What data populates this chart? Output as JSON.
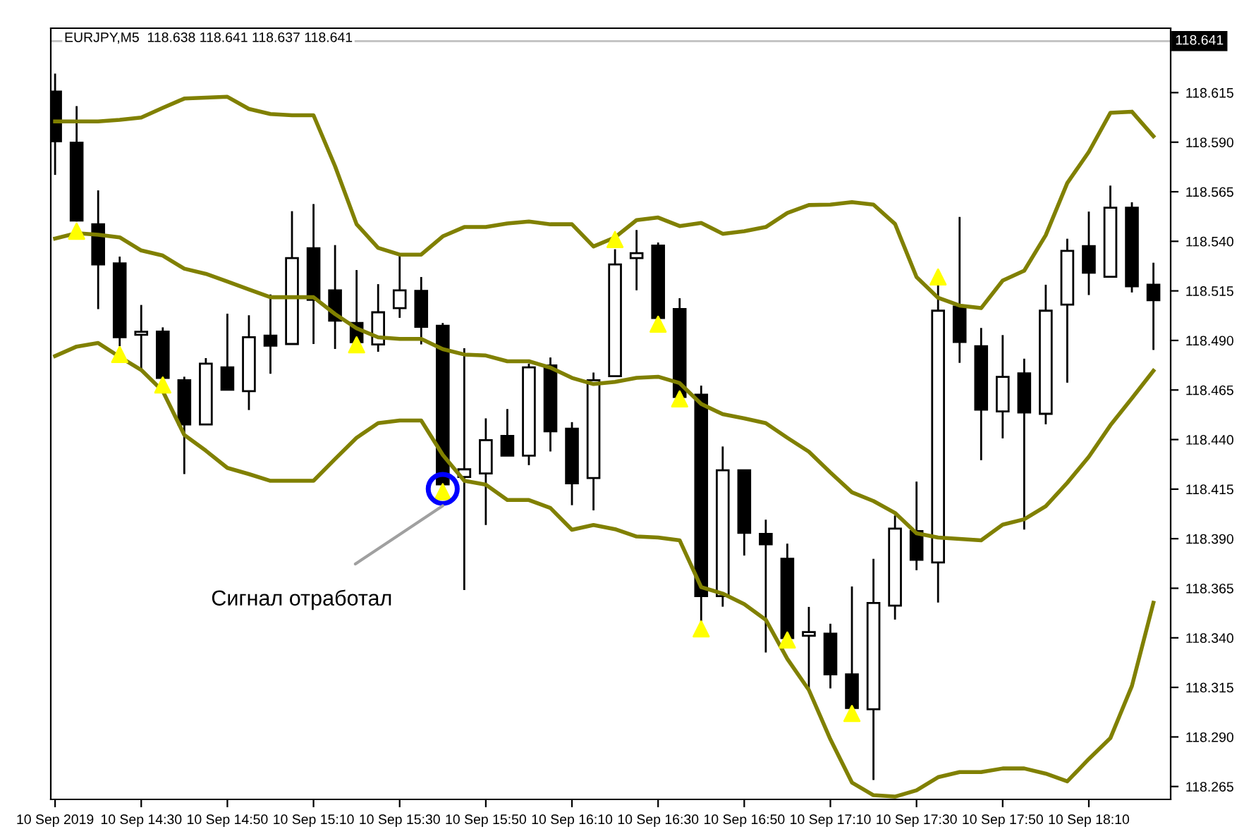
{
  "chart_data": {
    "type": "candlestick",
    "title": "EURJPY,M5  118.638 118.641 118.637 118.641",
    "x": [
      "2019-09-10T14:10",
      "2019-09-10T14:15",
      "2019-09-10T14:20",
      "2019-09-10T14:25",
      "2019-09-10T14:30",
      "2019-09-10T14:35",
      "2019-09-10T14:40",
      "2019-09-10T14:45",
      "2019-09-10T14:50",
      "2019-09-10T14:55",
      "2019-09-10T15:00",
      "2019-09-10T15:05",
      "2019-09-10T15:10",
      "2019-09-10T15:15",
      "2019-09-10T15:20",
      "2019-09-10T15:25",
      "2019-09-10T15:30",
      "2019-09-10T15:35",
      "2019-09-10T15:40",
      "2019-09-10T15:45",
      "2019-09-10T15:50",
      "2019-09-10T15:55",
      "2019-09-10T16:00",
      "2019-09-10T16:05",
      "2019-09-10T16:10",
      "2019-09-10T16:15",
      "2019-09-10T16:20",
      "2019-09-10T16:25",
      "2019-09-10T16:30",
      "2019-09-10T16:35",
      "2019-09-10T16:40",
      "2019-09-10T16:45",
      "2019-09-10T16:50",
      "2019-09-10T16:55",
      "2019-09-10T17:00",
      "2019-09-10T17:05",
      "2019-09-10T17:10",
      "2019-09-10T17:15",
      "2019-09-10T17:20",
      "2019-09-10T17:25",
      "2019-09-10T17:30",
      "2019-09-10T17:35",
      "2019-09-10T17:40",
      "2019-09-10T17:45",
      "2019-09-10T17:50",
      "2019-09-10T17:55",
      "2019-09-10T18:00",
      "2019-09-10T18:05",
      "2019-09-10T18:10",
      "2019-09-10T18:15",
      "2019-09-10T18:20",
      "2019-09-10T18:25"
    ],
    "ohlc": [
      [
        118.6155,
        118.6246,
        118.5735,
        118.5905
      ],
      [
        118.5898,
        118.6082,
        118.55,
        118.5505
      ],
      [
        118.5486,
        118.5657,
        118.5058,
        118.5283
      ],
      [
        118.5289,
        118.5323,
        118.4871,
        118.4916
      ],
      [
        118.4929,
        118.5079,
        118.4751,
        118.4944
      ],
      [
        118.4945,
        118.4966,
        118.471,
        118.4711
      ],
      [
        118.4699,
        118.4717,
        118.4226,
        118.4476
      ],
      [
        118.4476,
        118.4811,
        118.4476,
        118.4783
      ],
      [
        118.4764,
        118.5035,
        118.4651,
        118.4651
      ],
      [
        118.4644,
        118.5027,
        118.4549,
        118.4916
      ],
      [
        118.4924,
        118.5132,
        118.4732,
        118.4874
      ],
      [
        118.4882,
        118.5552,
        118.4882,
        118.5315
      ],
      [
        118.5365,
        118.5588,
        118.4882,
        118.5105
      ],
      [
        118.5153,
        118.5381,
        118.4857,
        118.5
      ],
      [
        118.4988,
        118.5255,
        118.489,
        118.4891
      ],
      [
        118.488,
        118.5184,
        118.4843,
        118.5042
      ],
      [
        118.5063,
        118.5329,
        118.5014,
        118.5153
      ],
      [
        118.515,
        118.522,
        118.488,
        118.4969
      ],
      [
        118.4974,
        118.4988,
        118.4174,
        118.4174
      ],
      [
        118.4211,
        118.4861,
        118.3641,
        118.425
      ],
      [
        118.4229,
        118.4507,
        118.3969,
        118.4397
      ],
      [
        118.4418,
        118.4554,
        118.4319,
        118.4319
      ],
      [
        118.4319,
        118.4783,
        118.4271,
        118.4764
      ],
      [
        118.4774,
        118.4814,
        118.434,
        118.4442
      ],
      [
        118.4455,
        118.4488,
        118.4069,
        118.4179
      ],
      [
        118.4206,
        118.4738,
        118.4043,
        118.4699
      ],
      [
        118.472,
        118.536,
        118.472,
        118.5283
      ],
      [
        118.5315,
        118.5457,
        118.5153,
        118.534
      ],
      [
        118.5378,
        118.5394,
        118.5013,
        118.5013
      ],
      [
        118.5058,
        118.5113,
        118.4615,
        118.4615
      ],
      [
        118.4626,
        118.4672,
        118.3478,
        118.361
      ],
      [
        118.361,
        118.4365,
        118.3557,
        118.4245
      ],
      [
        118.4245,
        118.4245,
        118.3815,
        118.393
      ],
      [
        118.3924,
        118.3996,
        118.3326,
        118.3872
      ],
      [
        118.3799,
        118.3875,
        118.3399,
        118.3399
      ],
      [
        118.341,
        118.3556,
        118.3137,
        118.3429
      ],
      [
        118.3421,
        118.3471,
        118.3145,
        118.3216
      ],
      [
        118.3216,
        118.3659,
        118.3046,
        118.3046
      ],
      [
        118.304,
        118.3798,
        118.2683,
        118.3576
      ],
      [
        118.3562,
        118.4017,
        118.3492,
        118.3951
      ],
      [
        118.3938,
        118.4188,
        118.3741,
        118.3794
      ],
      [
        118.378,
        118.5181,
        118.3578,
        118.505
      ],
      [
        118.5071,
        118.5523,
        118.4787,
        118.4892
      ],
      [
        118.4871,
        118.4963,
        118.4296,
        118.4551
      ],
      [
        118.4542,
        118.4927,
        118.4406,
        118.4716
      ],
      [
        118.4734,
        118.4808,
        118.3946,
        118.4537
      ],
      [
        118.453,
        118.5181,
        118.4477,
        118.505
      ],
      [
        118.5081,
        118.5413,
        118.4687,
        118.5352
      ],
      [
        118.5376,
        118.555,
        118.5129,
        118.5242
      ],
      [
        118.5221,
        118.5681,
        118.5221,
        118.557
      ],
      [
        118.557,
        118.5597,
        118.5142,
        118.5173
      ],
      [
        118.5181,
        118.5292,
        118.4852,
        118.5103
      ]
    ],
    "series": [
      {
        "type": "line",
        "color": "#808000",
        "values": [
          118.6005,
          118.6005,
          118.6005,
          118.6013,
          118.6024,
          118.6073,
          118.612,
          118.6125,
          118.6129,
          118.6068,
          118.6042,
          118.6036,
          118.6036,
          118.5779,
          118.5486,
          118.5367,
          118.5333,
          118.5333,
          118.5425,
          118.5472,
          118.5472,
          118.549,
          118.55,
          118.5486,
          118.5486,
          118.5374,
          118.542,
          118.5507,
          118.552,
          118.5477,
          118.5493,
          118.5438,
          118.5451,
          118.5472,
          118.5543,
          118.5583,
          118.5585,
          118.5598,
          118.5585,
          118.5488,
          118.522,
          118.5115,
          118.5076,
          118.5063,
          118.5202,
          118.5252,
          118.5431,
          118.5694,
          118.5851,
          118.6048,
          118.6054,
          118.593
        ]
      },
      {
        "type": "line",
        "color": "#808000",
        "values": [
          118.5414,
          118.5441,
          118.5433,
          118.542,
          118.5354,
          118.5328,
          118.5262,
          118.5236,
          118.5197,
          118.5157,
          118.5118,
          118.5118,
          118.5118,
          118.5033,
          118.4961,
          118.4916,
          118.4908,
          118.4908,
          118.4856,
          118.4829,
          118.4824,
          118.4795,
          118.4795,
          118.4763,
          118.4711,
          118.468,
          118.4691,
          118.4711,
          118.4717,
          118.4685,
          118.458,
          118.4528,
          118.4507,
          118.4483,
          118.4409,
          118.4339,
          118.4234,
          118.4134,
          118.409,
          118.403,
          118.3927,
          118.3906,
          118.3899,
          118.3892,
          118.3971,
          118.3998,
          118.4064,
          118.4182,
          118.4313,
          118.4472,
          118.4608,
          118.4747
        ]
      },
      {
        "type": "line",
        "color": "#808000",
        "values": [
          118.4821,
          118.4869,
          118.4887,
          118.4817,
          118.4751,
          118.4645,
          118.4423,
          118.4344,
          118.4257,
          118.4226,
          118.4192,
          118.4192,
          118.4192,
          118.4302,
          118.4409,
          118.4483,
          118.4496,
          118.4496,
          118.4323,
          118.4192,
          118.4173,
          118.4095,
          118.4095,
          118.4055,
          118.3945,
          118.3969,
          118.3948,
          118.3911,
          118.3906,
          118.3892,
          118.3656,
          118.3623,
          118.357,
          118.3491,
          118.3294,
          118.3137,
          118.2888,
          118.267,
          118.2606,
          118.2599,
          118.2631,
          118.2697,
          118.2723,
          118.2723,
          118.2741,
          118.2741,
          118.2715,
          118.2676,
          118.2789,
          118.2894,
          118.3157,
          118.3577
        ]
      },
      {
        "type": "scatter",
        "color": "#ffff00",
        "marker": "triangle",
        "x": [
          "2019-09-10T14:15",
          "2019-09-10T14:25",
          "2019-09-10T14:35",
          "2019-09-10T15:20",
          "2019-09-10T15:40",
          "2019-09-10T16:20",
          "2019-09-10T16:30",
          "2019-09-10T16:35",
          "2019-09-10T16:40",
          "2019-09-10T17:00",
          "2019-09-10T17:15",
          "2019-09-10T17:35"
        ],
        "values": [
          118.5451,
          118.4829,
          118.4675,
          118.4878,
          118.4137,
          118.5409,
          118.4982,
          118.4605,
          118.3445,
          118.3389,
          118.3018,
          118.522
        ]
      },
      {
        "type": "scatter",
        "color": "#0000ff",
        "marker": "circle",
        "x": [
          "2019-09-10T15:40"
        ],
        "values": [
          118.4151
        ]
      }
    ],
    "xlim": [
      "2019-09-10T14:09",
      "2019-09-10T18:29"
    ],
    "xticks": [
      {
        "value": "2019-09-10T14:10",
        "label": "10 Sep 2019"
      },
      {
        "value": "2019-09-10T14:30",
        "label": "10 Sep 14:30"
      },
      {
        "value": "2019-09-10T14:50",
        "label": "10 Sep 14:50"
      },
      {
        "value": "2019-09-10T15:10",
        "label": "10 Sep 15:10"
      },
      {
        "value": "2019-09-10T15:30",
        "label": "10 Sep 15:30"
      },
      {
        "value": "2019-09-10T15:50",
        "label": "10 Sep 15:50"
      },
      {
        "value": "2019-09-10T16:10",
        "label": "10 Sep 16:10"
      },
      {
        "value": "2019-09-10T16:30",
        "label": "10 Sep 16:30"
      },
      {
        "value": "2019-09-10T16:50",
        "label": "10 Sep 16:50"
      },
      {
        "value": "2019-09-10T17:10",
        "label": "10 Sep 17:10"
      },
      {
        "value": "2019-09-10T17:30",
        "label": "10 Sep 17:30"
      },
      {
        "value": "2019-09-10T17:50",
        "label": "10 Sep 17:50"
      },
      {
        "value": "2019-09-10T18:10",
        "label": "10 Sep 18:10"
      }
    ],
    "ylim": [
      118.2585,
      118.6475
    ],
    "yticks": [
      {
        "value": 118.615,
        "label": "118.615"
      },
      {
        "value": 118.59,
        "label": "118.590"
      },
      {
        "value": 118.565,
        "label": "118.565"
      },
      {
        "value": 118.54,
        "label": "118.540"
      },
      {
        "value": 118.515,
        "label": "118.515"
      },
      {
        "value": 118.49,
        "label": "118.490"
      },
      {
        "value": 118.465,
        "label": "118.465"
      },
      {
        "value": 118.44,
        "label": "118.440"
      },
      {
        "value": 118.415,
        "label": "118.415"
      },
      {
        "value": 118.39,
        "label": "118.390"
      },
      {
        "value": 118.365,
        "label": "118.365"
      },
      {
        "value": 118.34,
        "label": "118.340"
      },
      {
        "value": 118.315,
        "label": "118.315"
      },
      {
        "value": 118.29,
        "label": "118.290"
      },
      {
        "value": 118.265,
        "label": "118.265"
      }
    ],
    "ref_lines": [
      {
        "axis": "y",
        "value": 118.641,
        "label": "118.641",
        "color": "#c0c0c0"
      }
    ],
    "annotations": [
      {
        "text": "Сигнал отработал",
        "x": "2019-09-10T15:40",
        "y": 118.4066
      }
    ],
    "grid": false,
    "legend": false
  }
}
